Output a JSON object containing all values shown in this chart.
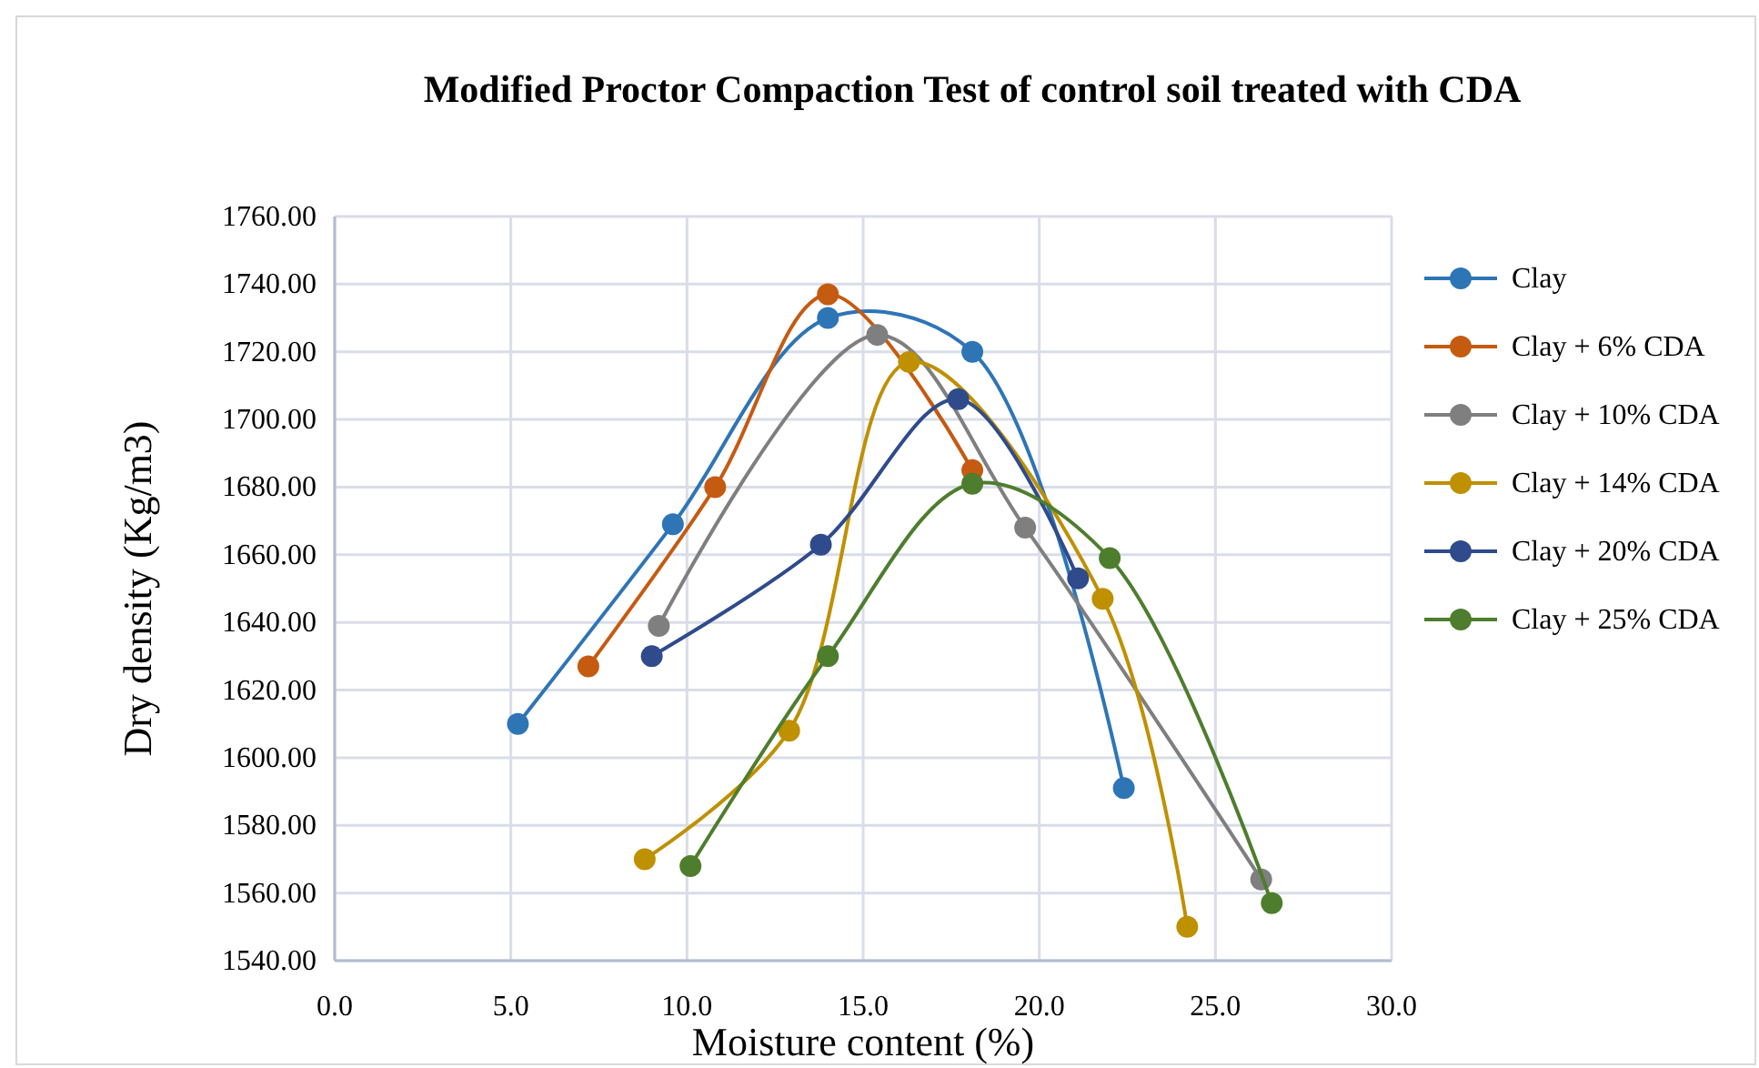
{
  "chart_data": {
    "type": "line",
    "title": "Modified Proctor Compaction Test of control soil treated with CDA",
    "xlabel": "Moisture content (%)",
    "ylabel": "Dry density (Kg/m3)",
    "xlim": [
      0,
      30
    ],
    "xticks": [
      {
        "value": 0,
        "label": "0.0"
      },
      {
        "value": 5,
        "label": "5.0"
      },
      {
        "value": 10,
        "label": "10.0"
      },
      {
        "value": 15,
        "label": "15.0"
      },
      {
        "value": 20,
        "label": "20.0"
      },
      {
        "value": 25,
        "label": "25.0"
      },
      {
        "value": 30,
        "label": "30.0"
      }
    ],
    "ylim": [
      1540,
      1760
    ],
    "yticks": [
      {
        "value": 1540,
        "label": "1540.00"
      },
      {
        "value": 1560,
        "label": "1560.00"
      },
      {
        "value": 1580,
        "label": "1580.00"
      },
      {
        "value": 1600,
        "label": "1600.00"
      },
      {
        "value": 1620,
        "label": "1620.00"
      },
      {
        "value": 1640,
        "label": "1640.00"
      },
      {
        "value": 1660,
        "label": "1660.00"
      },
      {
        "value": 1680,
        "label": "1680.00"
      },
      {
        "value": 1700,
        "label": "1700.00"
      },
      {
        "value": 1720,
        "label": "1720.00"
      },
      {
        "value": 1740,
        "label": "1740.00"
      },
      {
        "value": 1760,
        "label": "1760.00"
      }
    ],
    "grid": true,
    "legend": "right",
    "marker": "circle",
    "series": [
      {
        "name": "Clay",
        "color": "#2e75b6",
        "x": [
          5.2,
          9.6,
          14.0,
          18.1,
          22.4
        ],
        "values": [
          1610,
          1669,
          1730,
          1720,
          1591
        ]
      },
      {
        "name": "Clay + 6% CDA",
        "color": "#c55a11",
        "x": [
          7.2,
          10.8,
          14.0,
          18.1
        ],
        "values": [
          1627,
          1680,
          1737,
          1685
        ]
      },
      {
        "name": "Clay + 10% CDA",
        "color": "#7f7f7f",
        "x": [
          9.2,
          15.4,
          19.6,
          26.3
        ],
        "values": [
          1639,
          1725,
          1668,
          1564
        ]
      },
      {
        "name": "Clay + 14% CDA",
        "color": "#bf9000",
        "x": [
          8.8,
          12.9,
          16.3,
          21.8,
          24.2
        ],
        "values": [
          1570,
          1608,
          1717,
          1647,
          1550
        ]
      },
      {
        "name": "Clay + 20% CDA",
        "color": "#2f4b8c",
        "x": [
          9.0,
          13.8,
          17.7,
          21.1
        ],
        "values": [
          1630,
          1663,
          1706,
          1653
        ]
      },
      {
        "name": "Clay + 25% CDA",
        "color": "#4e7d2e",
        "x": [
          10.1,
          14.0,
          18.1,
          22.0,
          26.6
        ],
        "values": [
          1568,
          1630,
          1681,
          1659,
          1557
        ]
      }
    ]
  }
}
